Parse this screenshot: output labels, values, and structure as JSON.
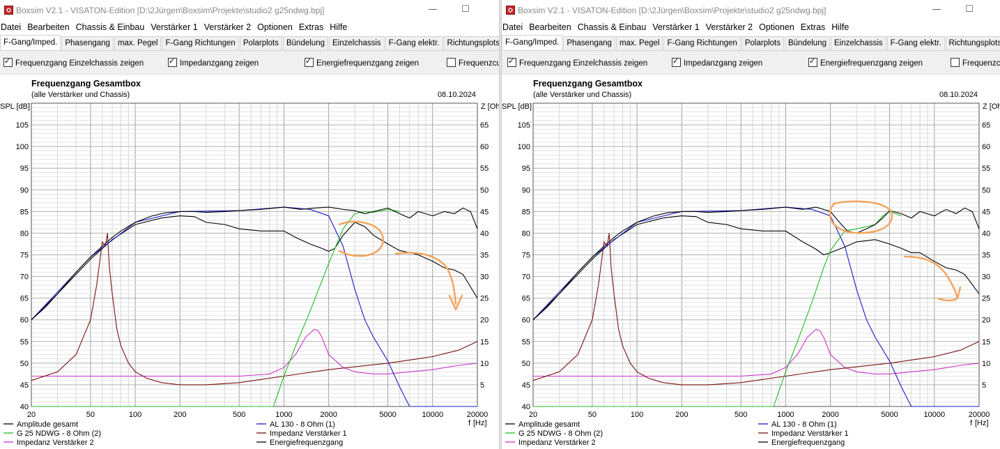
{
  "windows": [
    {
      "title": "Boxsim V2.1 - VISATON-Edition [D:\\2Jürgen\\Boxsim\\Projekte\\studio2 g25ndwg.bpj]",
      "menu": [
        "Datei",
        "Bearbeiten",
        "Chassis & Einbau",
        "Verstärker 1",
        "Verstärker 2",
        "Optionen",
        "Extras",
        "Hilfe"
      ],
      "tabs": [
        "F-Gang/Imped.",
        "Phasengang",
        "max. Pegel",
        "F-Gang Richtungen",
        "Polarplots",
        "Bündelung",
        "Einzelchassis",
        "F-Gang elektr.",
        "Richtungsplots"
      ],
      "active_tab": "F-Gang/Imped.",
      "options": [
        {
          "label": "Frequenzgang Einzelchassis zeigen",
          "checked": true
        },
        {
          "label": "Impedanzgang zeigen",
          "checked": true
        },
        {
          "label": "Energiefrequenzgang zeigen",
          "checked": true
        },
        {
          "label": "Frequenzcu",
          "checked": false
        }
      ]
    },
    {
      "title": "Boxsim V2.1 - VISATON-Edition [D:\\2Jürgen\\Boxsim\\Projekte\\studio2 g25ndwg.bpj]",
      "menu": [
        "Datei",
        "Bearbeiten",
        "Chassis & Einbau",
        "Verstärker 1",
        "Verstärker 2",
        "Optionen",
        "Extras",
        "Hilfe"
      ],
      "tabs": [
        "F-Gang/Imped.",
        "Phasengang",
        "max. Pegel",
        "F-Gang Richtungen",
        "Polarplots",
        "Bündelung",
        "Einzelchassis",
        "F-Gang elektr.",
        "Richtungsplots"
      ],
      "active_tab": "F-Gang/Imped.",
      "options": [
        {
          "label": "Frequenzgang Einzelchassis zeigen",
          "checked": true
        },
        {
          "label": "Impedanzgang zeigen",
          "checked": true
        },
        {
          "label": "Energiefrequenzgang zeigen",
          "checked": true
        },
        {
          "label": "Frequenzcu",
          "checked": false
        }
      ]
    }
  ],
  "colors": {
    "amplitude": "#000000",
    "g25": "#22bb22",
    "al130": "#1a1acc",
    "imp1": "#7a1010",
    "imp2": "#cc33cc",
    "energy": "#000000",
    "annotation": "#f3a55d"
  },
  "chart_data": [
    {
      "type": "line",
      "title": "Frequenzgang Gesamtbox",
      "subtitle": "(alle Verstärker und Chassis)",
      "date": "08.10.2024",
      "ylabel": "SPL [dB]",
      "y2label": "Z [Ohm]",
      "xlabel": "f [Hz]",
      "xscale": "log",
      "xlim": [
        20,
        20000
      ],
      "ylim": [
        40,
        110
      ],
      "y2lim": [
        0,
        70
      ],
      "xticks": [
        20,
        50,
        100,
        200,
        500,
        1000,
        2000,
        5000,
        10000,
        20000
      ],
      "xtick_labels": [
        "20",
        "50",
        "100",
        "200",
        "500",
        "1000",
        "2000",
        "5000",
        "10000",
        "20000"
      ],
      "yticks": [
        40,
        45,
        50,
        55,
        60,
        65,
        70,
        75,
        80,
        85,
        90,
        95,
        100,
        105
      ],
      "y2ticks": [
        5,
        10,
        15,
        20,
        25,
        30,
        35,
        40,
        45,
        50,
        55,
        60,
        65
      ],
      "legend": [
        "Amplitude gesamt",
        "G 25 NDWG - 8 Ohm (2)",
        "Impedanz Verstärker 2",
        "AL 130 - 8 Ohm (1)",
        "Impedanz Verstärker 1",
        "Energiefrequenzgang"
      ],
      "series": [
        {
          "name": "Amplitude gesamt",
          "axis": "left",
          "x": [
            20,
            25,
            30,
            40,
            50,
            60,
            70,
            80,
            100,
            130,
            160,
            200,
            250,
            300,
            400,
            500,
            700,
            1000,
            1300,
            1600,
            2000,
            2500,
            3000,
            3500,
            4000,
            5000,
            6000,
            7000,
            8000,
            10000,
            12000,
            14000,
            16000,
            18000,
            20000
          ],
          "y": [
            60,
            63,
            66,
            71,
            74.5,
            77,
            79,
            80.5,
            82.5,
            84,
            84.7,
            85,
            85,
            84.8,
            85,
            85.2,
            85.5,
            86,
            85.5,
            85.8,
            86,
            85.5,
            85.2,
            84.5,
            85,
            85.8,
            84.5,
            83.5,
            85,
            84,
            85,
            84.5,
            85.8,
            85,
            81
          ]
        },
        {
          "name": "Energiefrequenzgang",
          "axis": "left",
          "x": [
            20,
            30,
            50,
            70,
            100,
            150,
            200,
            250,
            300,
            400,
            500,
            700,
            1000,
            1200,
            1500,
            1800,
            2000,
            2200,
            2500,
            3000,
            3500,
            4000,
            5000,
            6000,
            7000,
            8000,
            10000,
            12000,
            14000,
            16000,
            20000
          ],
          "y": [
            60,
            66,
            74,
            78.5,
            82,
            83.5,
            84,
            83.8,
            82.5,
            82,
            81,
            80.5,
            80.5,
            79,
            77.5,
            76.5,
            75.8,
            76.5,
            79.5,
            82.5,
            81.5,
            79.5,
            77.5,
            76,
            75.5,
            75,
            73.5,
            72,
            71.5,
            70.5,
            65
          ]
        },
        {
          "name": "G 25 NDWG - 8 Ohm (2)",
          "axis": "left",
          "x": [
            20,
            850,
            1000,
            1200,
            1500,
            1800,
            2000,
            2500,
            3000,
            3500,
            4000,
            5000,
            6000
          ],
          "y": [
            40,
            40,
            47,
            54,
            62,
            69,
            73,
            81,
            84.5,
            85,
            84.8,
            85.5,
            85
          ]
        },
        {
          "name": "AL 130 - 8 Ohm (1)",
          "axis": "left",
          "x": [
            20,
            50,
            100,
            200,
            500,
            1000,
            1500,
            2000,
            2500,
            3000,
            3500,
            4000,
            5000,
            6000,
            7000,
            20000
          ],
          "y": [
            60,
            74.5,
            82.5,
            85,
            85.2,
            86,
            85.5,
            84,
            77,
            67,
            60,
            56,
            50.5,
            44.5,
            40,
            40
          ]
        },
        {
          "name": "Impedanz Verstärker 1",
          "axis": "right",
          "x": [
            20,
            30,
            40,
            50,
            55,
            60,
            63,
            65,
            67,
            70,
            75,
            80,
            90,
            100,
            120,
            150,
            200,
            300,
            500,
            1000,
            2000,
            5000,
            8000,
            10000,
            15000,
            20000
          ],
          "y": [
            6,
            8,
            12,
            20,
            28,
            38,
            37,
            40,
            32,
            26,
            18,
            14,
            10,
            8,
            6.5,
            5.5,
            5,
            5,
            5.5,
            7,
            8.5,
            10,
            11,
            11.5,
            13,
            15
          ]
        },
        {
          "name": "Impedanz Verstärker 2",
          "axis": "right",
          "x": [
            20,
            100,
            200,
            500,
            800,
            1000,
            1200,
            1400,
            1600,
            1700,
            1800,
            2000,
            2500,
            3000,
            4000,
            5000,
            7000,
            10000,
            15000,
            20000
          ],
          "y": [
            7,
            7,
            7,
            7,
            7.5,
            9,
            12,
            16,
            17.8,
            17.5,
            16,
            12,
            9,
            8,
            7.5,
            7.5,
            8,
            8.5,
            9.5,
            10
          ]
        }
      ]
    },
    {
      "type": "line",
      "title": "Frequenzgang Gesamtbox",
      "subtitle": "(alle Verstärker und Chassis)",
      "date": "08.10.2024",
      "ylabel": "SPL [dB]",
      "y2label": "Z [Ohm]",
      "xlabel": "f [Hz]",
      "xscale": "log",
      "xlim": [
        20,
        20000
      ],
      "ylim": [
        40,
        110
      ],
      "y2lim": [
        0,
        70
      ],
      "xticks": [
        20,
        50,
        100,
        200,
        500,
        1000,
        2000,
        5000,
        10000,
        20000
      ],
      "xtick_labels": [
        "20",
        "50",
        "100",
        "200",
        "500",
        "1000",
        "2000",
        "5000",
        "10000",
        "20000"
      ],
      "yticks": [
        40,
        45,
        50,
        55,
        60,
        65,
        70,
        75,
        80,
        85,
        90,
        95,
        100,
        105
      ],
      "y2ticks": [
        5,
        10,
        15,
        20,
        25,
        30,
        35,
        40,
        45,
        50,
        55,
        60,
        65
      ],
      "legend": [
        "Amplitude gesamt",
        "G 25 NDWG - 8 Ohm (2)",
        "Impedanz Verstärker 2",
        "AL 130 - 8 Ohm (1)",
        "Impedanz Verstärker 1",
        "Energiefrequenzgang"
      ],
      "series": [
        {
          "name": "Amplitude gesamt",
          "axis": "left",
          "x": [
            20,
            25,
            30,
            40,
            50,
            60,
            70,
            80,
            100,
            130,
            160,
            200,
            250,
            300,
            400,
            500,
            700,
            1000,
            1300,
            1600,
            2000,
            2300,
            2600,
            3000,
            3500,
            4000,
            4500,
            5000,
            6000,
            7000,
            8000,
            10000,
            12000,
            14000,
            16000,
            18000,
            20000
          ],
          "y": [
            60,
            63,
            66,
            71,
            74.5,
            77,
            79,
            80.5,
            82.5,
            84,
            84.7,
            85,
            85,
            84.8,
            85,
            85.2,
            85.5,
            86,
            85.5,
            86,
            85,
            82.5,
            80.5,
            80,
            81,
            82,
            83.5,
            85.2,
            84.5,
            83.5,
            85,
            84,
            85.5,
            84.5,
            85.8,
            85,
            81
          ]
        },
        {
          "name": "Energiefrequenzgang",
          "axis": "left",
          "x": [
            20,
            30,
            50,
            70,
            100,
            150,
            200,
            250,
            300,
            400,
            500,
            700,
            1000,
            1300,
            1600,
            1800,
            2000,
            2500,
            3000,
            4000,
            5000,
            6000,
            7000,
            8000,
            10000,
            12000,
            14000,
            16000,
            20000
          ],
          "y": [
            60,
            66,
            74,
            78.5,
            82,
            83.5,
            84,
            83.8,
            82.5,
            82,
            81,
            80.5,
            80.5,
            78,
            76.3,
            75,
            75.5,
            76.8,
            78,
            78.5,
            77.5,
            76.5,
            75.5,
            75.5,
            73.5,
            72,
            71.5,
            70.5,
            66
          ]
        },
        {
          "name": "G 25 NDWG - 8 Ohm (2)",
          "axis": "left",
          "x": [
            20,
            830,
            1000,
            1200,
            1500,
            1800,
            2000,
            2500,
            3000,
            3500,
            4000,
            4500,
            5000,
            6000
          ],
          "y": [
            40,
            40,
            48,
            55,
            64,
            72,
            76,
            80.5,
            81,
            81.5,
            82,
            84,
            85,
            84
          ]
        },
        {
          "name": "AL 130 - 8 Ohm (1)",
          "axis": "left",
          "x": [
            20,
            50,
            100,
            200,
            500,
            1000,
            1500,
            2000,
            2500,
            3000,
            3500,
            4000,
            5000,
            6000,
            7000,
            20000
          ],
          "y": [
            60,
            74.5,
            82.5,
            85,
            85.2,
            86,
            85.5,
            84,
            77,
            67,
            60,
            56,
            50.5,
            44.5,
            40,
            40
          ]
        },
        {
          "name": "Impedanz Verstärker 1",
          "axis": "right",
          "x": [
            20,
            30,
            40,
            50,
            55,
            60,
            63,
            65,
            67,
            70,
            75,
            80,
            90,
            100,
            120,
            150,
            200,
            300,
            500,
            1000,
            2000,
            5000,
            8000,
            10000,
            15000,
            20000
          ],
          "y": [
            6,
            8,
            12,
            20,
            28,
            38,
            37,
            40,
            32,
            26,
            18,
            14,
            10,
            8,
            6.5,
            5.5,
            5,
            5,
            5.5,
            7,
            8.5,
            10,
            11,
            11.5,
            13,
            15
          ]
        },
        {
          "name": "Impedanz Verstärker 2",
          "axis": "right",
          "x": [
            20,
            100,
            200,
            500,
            800,
            1000,
            1200,
            1400,
            1600,
            1700,
            1800,
            2000,
            2500,
            3000,
            4000,
            5000,
            7000,
            10000,
            15000,
            20000
          ],
          "y": [
            7,
            7,
            7,
            7,
            7.5,
            9,
            12,
            16,
            17.8,
            17.5,
            16,
            12,
            9,
            8,
            7.5,
            7.5,
            8,
            8.5,
            9.5,
            10
          ]
        }
      ]
    }
  ]
}
